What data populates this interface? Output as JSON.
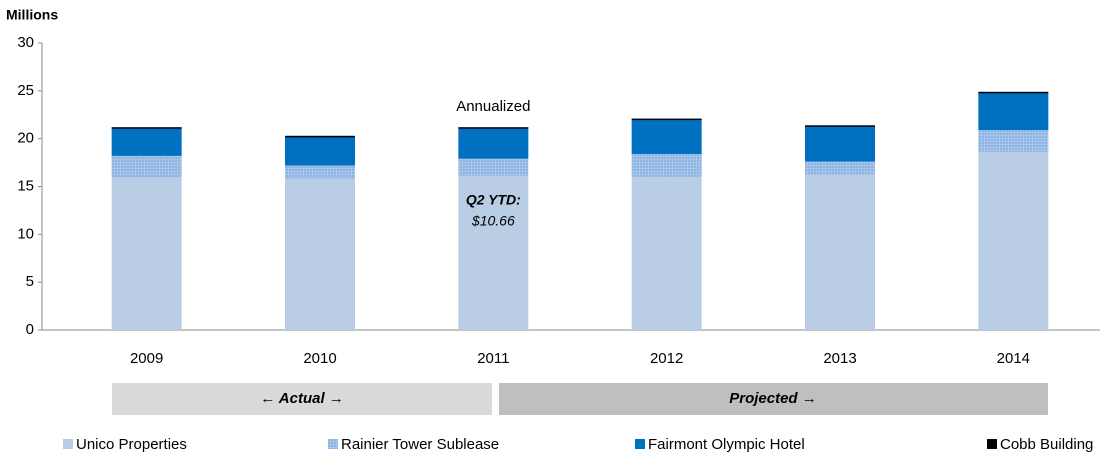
{
  "chart_data": {
    "type": "stacked_bar",
    "y_label": "Millions",
    "categories": [
      "2009",
      "2010",
      "2011",
      "2012",
      "2013",
      "2014"
    ],
    "series": [
      {
        "name": "Unico Properties",
        "color": "#b9cde5",
        "values": [
          15.9,
          15.8,
          16.1,
          16.0,
          16.2,
          18.6
        ]
      },
      {
        "name": "Rainier Tower Sublease",
        "color": "#8db4e2",
        "values": [
          2.3,
          1.4,
          1.8,
          2.4,
          1.4,
          2.3
        ]
      },
      {
        "name": "Fairmont Olympic Hotel",
        "color": "#0070c0",
        "values": [
          2.9,
          3.0,
          3.2,
          3.6,
          3.7,
          3.9
        ]
      },
      {
        "name": "Cobb Building",
        "color": "#000000",
        "values": [
          0.1,
          0.1,
          0.1,
          0.1,
          0.1,
          0.1
        ]
      }
    ],
    "ylim": [
      0,
      30
    ],
    "yticks": [
      0,
      5,
      10,
      15,
      20,
      25,
      30
    ],
    "grid": false,
    "legend": "bottom",
    "annotations": [
      "Annualized",
      "Q2 YTD:",
      "$10.66"
    ],
    "periods": [
      "← Actual →",
      "Projected →"
    ]
  }
}
